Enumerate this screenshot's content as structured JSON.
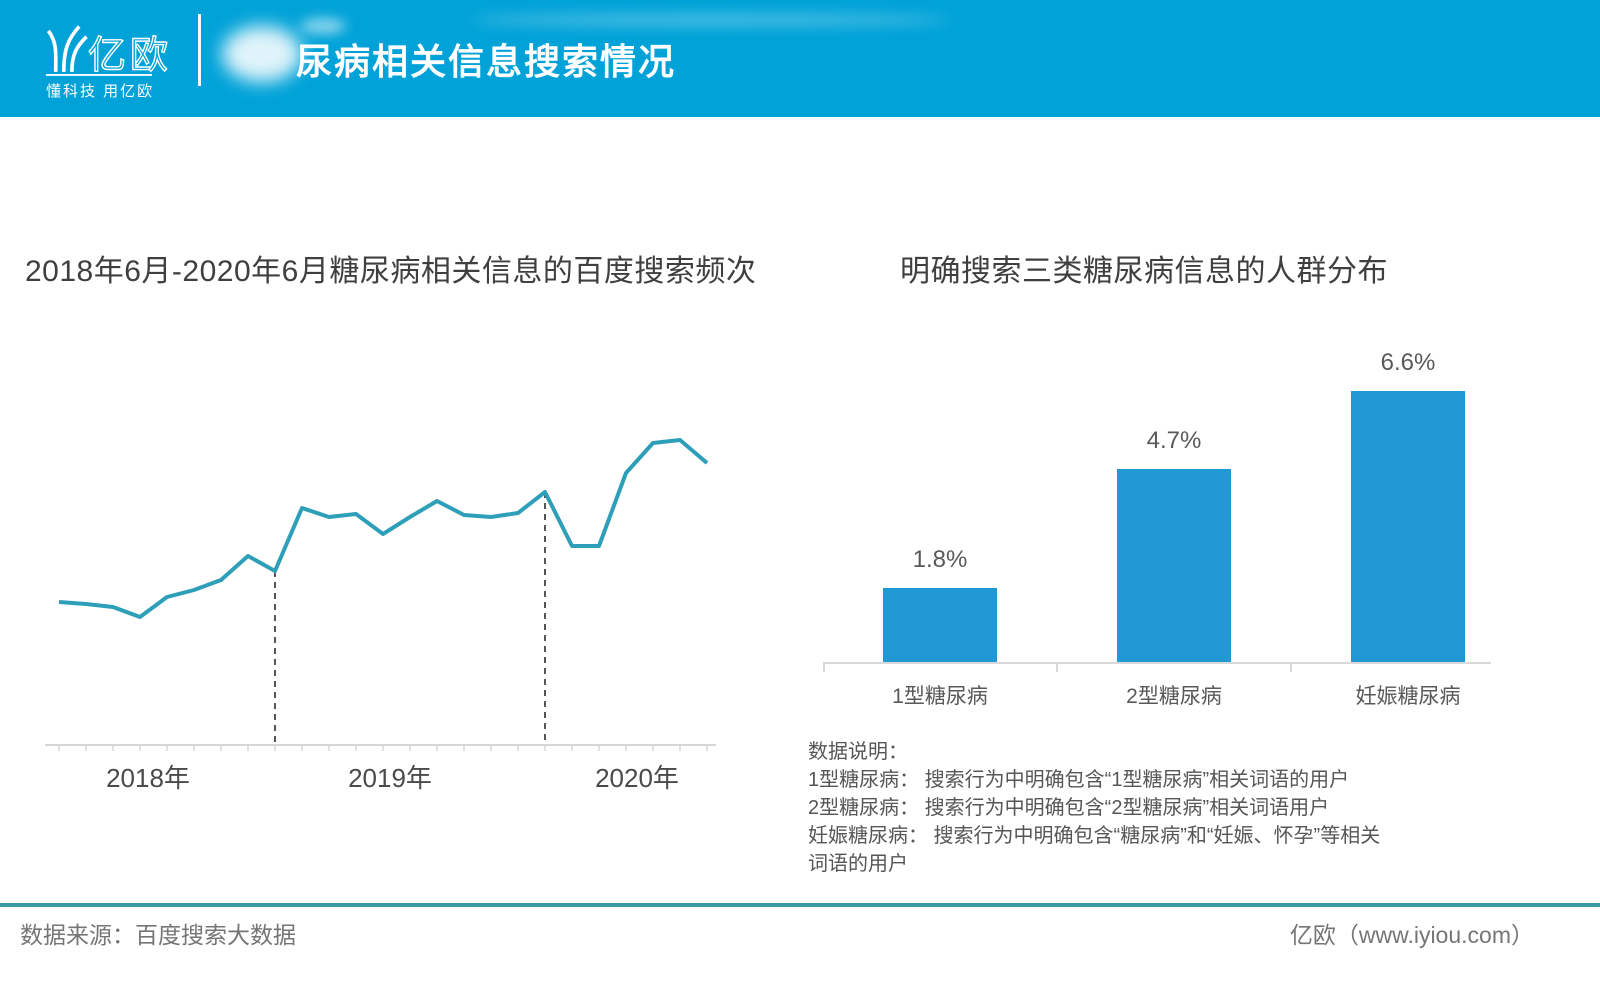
{
  "header": {
    "logo_text": "亿欧",
    "logo_tagline": "懂科技 用亿欧",
    "title": "尿病相关信息搜索情况"
  },
  "chart_data": [
    {
      "type": "line",
      "title": "2018年6月-2020年6月糖尿病相关信息的百度搜索频次",
      "x_axis_labels": [
        "2018年",
        "2019年",
        "2020年"
      ],
      "y_axis_note": "相对搜索频次（图中未标注数值刻度）",
      "values": [
        143,
        141,
        138,
        128,
        148,
        155,
        165,
        189,
        174,
        237,
        228,
        231,
        211,
        228,
        244,
        230,
        228,
        232,
        253,
        199,
        199,
        272,
        302,
        305,
        282
      ],
      "dashed_separator_indices": [
        8,
        18
      ],
      "grid": false,
      "legend": false
    },
    {
      "type": "bar",
      "title": "明确搜索三类糖尿病信息的人群分布",
      "categories": [
        "1型糖尿病",
        "2型糖尿病",
        "妊娠糖尿病"
      ],
      "values": [
        1.8,
        4.7,
        6.6
      ],
      "value_labels": [
        "1.8%",
        "4.7%",
        "6.6%"
      ],
      "ylim": [
        0,
        7
      ],
      "grid": false,
      "legend": false
    }
  ],
  "notes": {
    "lines": [
      "数据说明：",
      "1型糖尿病：  搜索行为中明确包含“1型糖尿病”相关词语的用户",
      "2型糖尿病：  搜索行为中明确包含“2型糖尿病”相关词语用户",
      "妊娠糖尿病：  搜索行为中明确包含“糖尿病”和“妊娠、怀孕”等相关",
      "词语的用户"
    ]
  },
  "footer": {
    "source": "数据来源：百度搜索大数据",
    "brand": "亿欧（www.iyiou.com）"
  },
  "colors": {
    "header_bg": "#00a2d8",
    "bar": "#2098d4",
    "line": "#2e9fb8",
    "axis": "#d6d6d6",
    "dashed": "#2b2b2b",
    "footer_rule": "#3d9aa2"
  }
}
